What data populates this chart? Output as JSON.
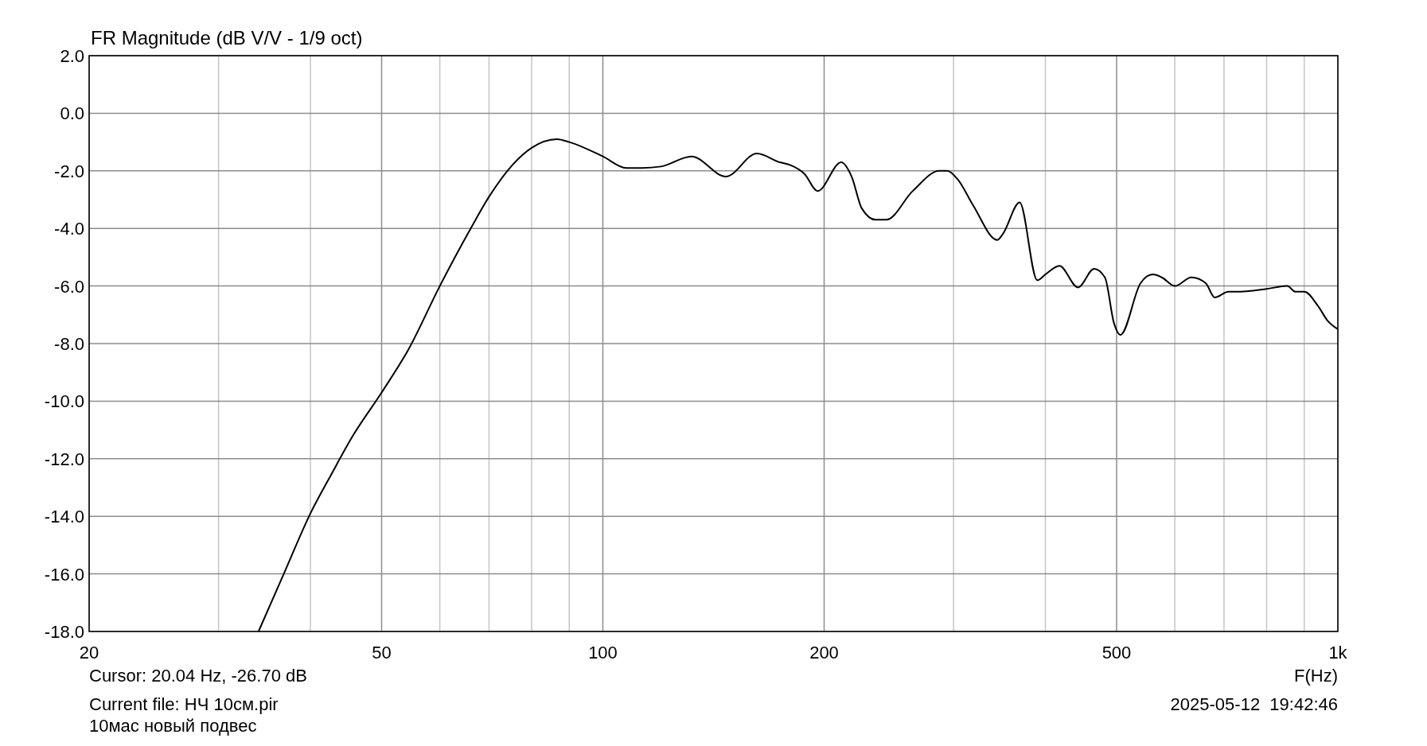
{
  "chart_data": {
    "type": "line",
    "title": "FR Magnitude (dB V/V - 1/9 oct)",
    "xlabel": "F(Hz)",
    "log": "x",
    "grid": true,
    "marker": "none",
    "line_style": "solid",
    "xlim": [
      20,
      1000
    ],
    "ylim": [
      -18,
      2
    ],
    "xticks": [
      20,
      {
        "value": 30,
        "label": null
      },
      {
        "value": 40,
        "label": null
      },
      50,
      {
        "value": 60,
        "label": null
      },
      {
        "value": 70,
        "label": null
      },
      {
        "value": 80,
        "label": null
      },
      {
        "value": 90,
        "label": null
      },
      100,
      200,
      {
        "value": 300,
        "label": null
      },
      {
        "value": 400,
        "label": null
      },
      500,
      {
        "value": 600,
        "label": null
      },
      {
        "value": 700,
        "label": null
      },
      {
        "value": 800,
        "label": null
      },
      {
        "value": 900,
        "label": null
      },
      {
        "value": 1000,
        "label": "1k"
      }
    ],
    "yticks": [
      {
        "value": 2,
        "label": "2.0"
      },
      {
        "value": 0,
        "label": "0.0"
      },
      {
        "value": -2,
        "label": "-2.0"
      },
      {
        "value": -4,
        "label": "-4.0"
      },
      {
        "value": -6,
        "label": "-6.0"
      },
      {
        "value": -8,
        "label": "-8.0"
      },
      {
        "value": -10,
        "label": "-10.0"
      },
      {
        "value": -12,
        "label": "-12.0"
      },
      {
        "value": -14,
        "label": "-14.0"
      },
      {
        "value": -16,
        "label": "-16.0"
      },
      {
        "value": -18,
        "label": "-18.0"
      }
    ],
    "annotations": [
      "Cursor: 20.04 Hz, -26.70 dB",
      "Current file: НЧ 10см.pir",
      "2025-05-12  19:42:46",
      "10мас новый подвес"
    ],
    "series": [
      {
        "color": "#000000",
        "x": [
          34,
          36.8,
          40,
          42.8,
          45.7,
          50,
          54.4,
          60,
          66.1,
          70,
          75.3,
          80,
          86.6,
          90,
          100,
          107.6,
          113,
          120,
          132,
          147,
          162,
          174,
          180,
          188,
          196,
          211,
          218,
          225,
          235,
          243,
          264,
          287,
          294,
          304,
          319,
          344,
          350,
          369,
          390,
          400,
          418,
          443,
          466,
          482,
          496,
          506,
          539,
          560,
          576,
          600,
          632,
          661,
          680,
          710,
          727,
          800,
          853,
          876,
          900,
          940,
          968,
          1000
        ],
        "values": [
          -18,
          -16,
          -13.9,
          -12.5,
          -11.2,
          -9.7,
          -8.2,
          -6,
          -4,
          -2.9,
          -1.8,
          -1.2,
          -0.9,
          -1,
          -1.5,
          -1.9,
          -1.9,
          -1.85,
          -1.5,
          -2.2,
          -1.4,
          -1.7,
          -1.8,
          -2.1,
          -2.7,
          -1.7,
          -2.2,
          -3.3,
          -3.7,
          -3.7,
          -2.7,
          -2,
          -2,
          -2.3,
          -3.2,
          -4.4,
          -4.2,
          -3.1,
          -5.8,
          -5.6,
          -5.3,
          -6.05,
          -5.4,
          -5.7,
          -7.3,
          -7.7,
          -5.9,
          -5.6,
          -5.7,
          -6,
          -5.7,
          -5.9,
          -6.4,
          -6.2,
          -6.2,
          -6.1,
          -6,
          -6.2,
          -6.2,
          -6.7,
          -7.2,
          -7.5
        ]
      }
    ]
  }
}
